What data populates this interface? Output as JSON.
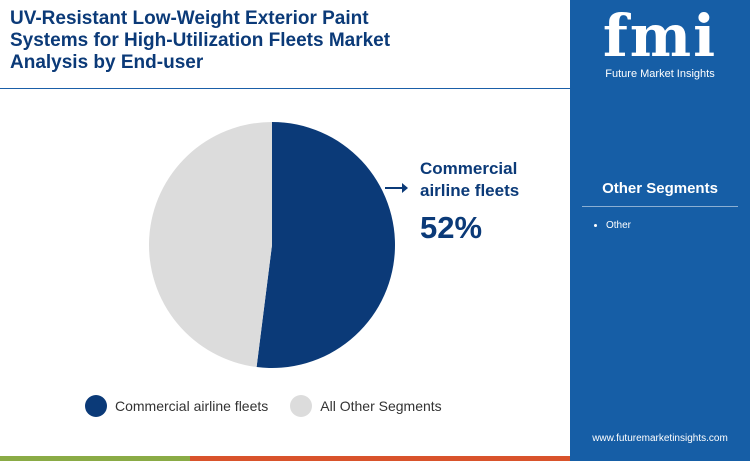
{
  "chart_data": {
    "type": "pie",
    "title": "UV-Resistant Low-Weight Exterior Paint Systems for High-Utilization Fleets Market Analysis by End-user",
    "categories": [
      "Commercial airline fleets",
      "All Other Segments"
    ],
    "values": [
      52,
      48
    ],
    "value_labels": [
      "52%",
      null
    ],
    "colors": [
      "#0b3a78",
      "#dcdcdc"
    ]
  },
  "sidebar": {
    "logo": "fmi",
    "brand": "Future Market Insights",
    "heading": "Other Segments",
    "items": [
      "Other"
    ],
    "website": "www.futuremarketinsights.com"
  }
}
